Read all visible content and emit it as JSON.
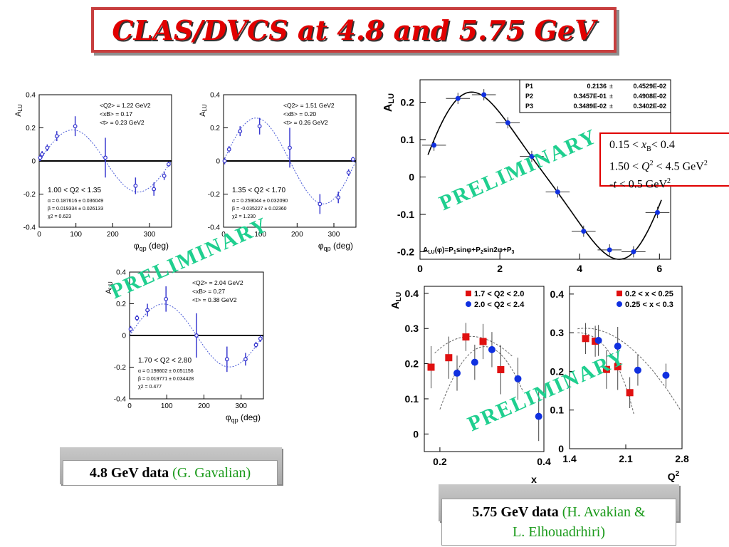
{
  "slide_title": "CLAS/DVCS at 4.8 and 5.75 GeV",
  "watermark": "PRELIMINARY",
  "caption_48": {
    "bold": "4.8 GeV data",
    "author": "(G. Gavalian)"
  },
  "caption_575": {
    "bold": "5.75 GeV data",
    "author": "(H. Avakian &",
    "author2": "L. Elhouadrhiri)"
  },
  "range_box": {
    "line1": "0.15 < xB< 0.4",
    "line2": "1.50 < Q2 < 4.5 GeV2",
    "line3": "-t < 0.5 GeV2"
  },
  "colors": {
    "fit_blue": "#4a5bd6",
    "red": "#e01010",
    "blue": "#1030e0",
    "title_red": "#e10000",
    "prelim_green": "#1fcf8f"
  },
  "chart_data": [
    {
      "type": "scatter",
      "panel": "48-a",
      "ylabel": "ALU",
      "xlabel": "φqp (deg)",
      "xlim": [
        0,
        360
      ],
      "ylim": [
        -0.4,
        0.4
      ],
      "xticks": [
        "0",
        "100",
        "200",
        "300"
      ],
      "yticks": [
        "0.4",
        "0.2",
        "0",
        "-0.2",
        "-0.4"
      ],
      "info": [
        "<Q2> = 1.22 GeV2",
        "<xB> = 0.17",
        "<t> = 0.23 GeV2"
      ],
      "range": "1.00 < Q2 < 1.35",
      "fit": [
        "α = 0.187616 ± 0.036049",
        "β = 0.019334 ± 0.026133",
        "χ2 = 0.623"
      ],
      "fit_params": {
        "alpha": 0.187616,
        "beta": 0.019334
      },
      "points": [
        [
          3,
          0.02,
          0.02
        ],
        [
          8,
          0.04,
          0.02
        ],
        [
          22,
          0.08,
          0.02
        ],
        [
          48,
          0.15,
          0.03
        ],
        [
          98,
          0.21,
          0.06
        ],
        [
          180,
          0.02,
          0.12
        ],
        [
          262,
          -0.15,
          0.05
        ],
        [
          312,
          -0.17,
          0.04
        ],
        [
          340,
          -0.09,
          0.025
        ],
        [
          352,
          -0.02,
          0.015
        ]
      ]
    },
    {
      "type": "scatter",
      "panel": "48-b",
      "ylabel": "ALU",
      "xlabel": "φqp (deg)",
      "xlim": [
        0,
        360
      ],
      "ylim": [
        -0.4,
        0.4
      ],
      "xticks": [
        "0",
        "100",
        "200",
        "300"
      ],
      "yticks": [
        "0.4",
        "0.2",
        "0",
        "-0.2",
        "-0.4"
      ],
      "info": [
        "<Q2> = 1.51 GeV2",
        "<xB> = 0.20",
        "<t> = 0.26 GeV2"
      ],
      "range": "1.35 < Q2 < 1.70",
      "fit": [
        "α = 0.259044 ± 0.032090",
        "β = -0.035227 ± 0.02360",
        "χ2 = 1.230"
      ],
      "fit_params": {
        "alpha": 0.259044,
        "beta": -0.035227
      },
      "points": [
        [
          3,
          0.0,
          0.02
        ],
        [
          15,
          0.07,
          0.02
        ],
        [
          45,
          0.18,
          0.03
        ],
        [
          98,
          0.21,
          0.05
        ],
        [
          180,
          0.08,
          0.12
        ],
        [
          262,
          -0.26,
          0.06
        ],
        [
          312,
          -0.22,
          0.035
        ],
        [
          340,
          -0.07,
          0.02
        ],
        [
          352,
          0.01,
          0.015
        ]
      ]
    },
    {
      "type": "scatter",
      "panel": "48-c",
      "ylabel": "ALU",
      "xlabel": "φqp (deg)",
      "xlim": [
        0,
        360
      ],
      "ylim": [
        -0.4,
        0.4
      ],
      "xticks": [
        "0",
        "100",
        "200",
        "300"
      ],
      "yticks": [
        "0.4",
        "0.2",
        "0",
        "-0.2",
        "-0.4"
      ],
      "info": [
        "<Q2> = 2.04 GeV2",
        "<xB> = 0.27",
        "<t> = 0.38 GeV2"
      ],
      "range": "1.70 < Q2 < 2.80",
      "fit": [
        "α = 0.198602 ± 0.051156",
        "β = 0.019771 ± 0.034428",
        "χ2 = 0.477"
      ],
      "fit_params": {
        "alpha": 0.198602,
        "beta": 0.019771
      },
      "points": [
        [
          3,
          0.04,
          0.02
        ],
        [
          20,
          0.11,
          0.02
        ],
        [
          48,
          0.16,
          0.04
        ],
        [
          98,
          0.23,
          0.08
        ],
        [
          180,
          0.0,
          0.14
        ],
        [
          262,
          -0.15,
          0.08
        ],
        [
          312,
          -0.15,
          0.04
        ],
        [
          340,
          -0.06,
          0.02
        ],
        [
          352,
          -0.02,
          0.02
        ]
      ]
    },
    {
      "type": "scatter",
      "panel": "575-phi",
      "ylabel": "ALU",
      "xlabel": "",
      "xlim": [
        0,
        6.28
      ],
      "ylim": [
        -0.22,
        0.26
      ],
      "xticks": [
        "0",
        "2",
        "4",
        "6"
      ],
      "yticks": [
        "0.2",
        "0.1",
        "0",
        "-0.1",
        "-0.2"
      ],
      "stats": [
        [
          "P1",
          "0.2136",
          "0.4529E-02"
        ],
        [
          "P2",
          "0.3457E-01",
          "0.4908E-02"
        ],
        [
          "P3",
          "0.3489E-02",
          "0.3402E-02"
        ]
      ],
      "formula": "ALU(φ)=P1sinφ+P2sin2φ+P3",
      "fit_params": {
        "P1": 0.2136,
        "P2": 0.03457,
        "P3": 0.003489
      },
      "points": [
        [
          0.35,
          0.085
        ],
        [
          0.95,
          0.21
        ],
        [
          1.6,
          0.22
        ],
        [
          2.2,
          0.145
        ],
        [
          2.8,
          0.055
        ],
        [
          3.45,
          -0.04
        ],
        [
          4.1,
          -0.145
        ],
        [
          4.75,
          -0.195
        ],
        [
          5.35,
          -0.2
        ],
        [
          5.95,
          -0.095
        ]
      ]
    },
    {
      "type": "scatter",
      "panel": "575-x",
      "ylabel": "ALU",
      "xlabel": "x",
      "xlim": [
        0.17,
        0.4
      ],
      "ylim": [
        -0.05,
        0.42
      ],
      "xticks": [
        "0.2",
        "0.4"
      ],
      "yticks": [
        "0.4",
        "0.3",
        "0.2",
        "0.1",
        "0"
      ],
      "legend": [
        "1.7 < Q2 < 2.0",
        "2.0 < Q2 < 2.4"
      ],
      "series": [
        {
          "name": "1.7 < Q2 < 2.0",
          "color": "red",
          "points": [
            [
              0.183,
              0.19,
              0.06
            ],
            [
              0.217,
              0.217,
              0.06
            ],
            [
              0.25,
              0.276,
              0.04
            ],
            [
              0.283,
              0.263,
              0.05
            ],
            [
              0.317,
              0.183,
              0.07
            ]
          ]
        },
        {
          "name": "2.0 < Q2 < 2.4",
          "color": "blue",
          "points": [
            [
              0.233,
              0.173,
              0.05
            ],
            [
              0.267,
              0.204,
              0.05
            ],
            [
              0.3,
              0.24,
              0.05
            ],
            [
              0.35,
              0.157,
              0.06
            ],
            [
              0.39,
              0.05,
              0.07
            ]
          ]
        }
      ]
    },
    {
      "type": "scatter",
      "panel": "575-Q2",
      "ylabel": "",
      "xlabel": "Q2",
      "xlim": [
        1.4,
        2.8
      ],
      "ylim": [
        0,
        0.42
      ],
      "xticks": [
        "1.4",
        "2.1",
        "2.8"
      ],
      "yticks": [
        "0.4",
        "0.3",
        "0.2",
        "0.1",
        "0"
      ],
      "legend": [
        "0.2 < x < 0.25",
        "0.25 < x < 0.3"
      ],
      "series": [
        {
          "name": "0.2 < x < 0.25",
          "color": "red",
          "points": [
            [
              1.6,
              0.285,
              0.04
            ],
            [
              1.72,
              0.278,
              0.04
            ],
            [
              1.86,
              0.205,
              0.05
            ],
            [
              2.0,
              0.212,
              0.06
            ],
            [
              2.15,
              0.145,
              0.04
            ]
          ]
        },
        {
          "name": "0.25 < x < 0.3",
          "color": "blue",
          "points": [
            [
              1.76,
              0.28,
              0.04
            ],
            [
              2.0,
              0.265,
              0.05
            ],
            [
              2.25,
              0.203,
              0.04
            ],
            [
              2.6,
              0.19,
              0.03
            ]
          ]
        }
      ]
    }
  ]
}
